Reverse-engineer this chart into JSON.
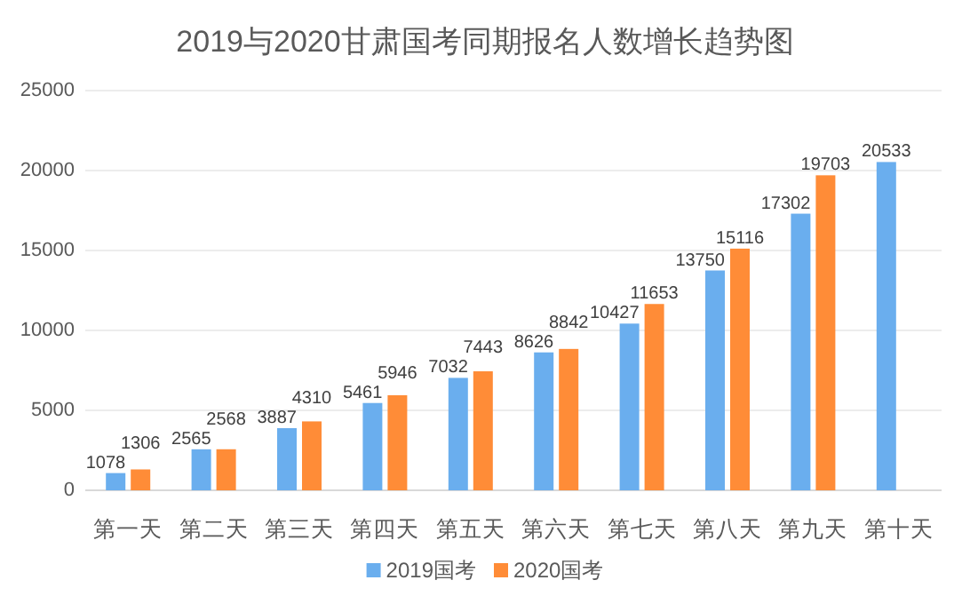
{
  "chart_data": {
    "type": "bar",
    "title": "2019与2020甘肃国考同期报名人数增长趋势图",
    "categories": [
      "第一天",
      "第二天",
      "第三天",
      "第四天",
      "第五天",
      "第六天",
      "第七天",
      "第八天",
      "第九天",
      "第十天"
    ],
    "series": [
      {
        "name": "2019国考",
        "color": "#6aaeee",
        "values": [
          1078,
          2565,
          3887,
          5461,
          7032,
          8626,
          10427,
          13750,
          17302,
          20533
        ]
      },
      {
        "name": "2020国考",
        "color": "#ff8c37",
        "values": [
          1306,
          2568,
          4310,
          5946,
          7443,
          8842,
          11653,
          15116,
          19703,
          null
        ]
      }
    ],
    "ylim": [
      0,
      25000
    ],
    "yticks": [
      0,
      5000,
      10000,
      15000,
      20000,
      25000
    ],
    "grid": "y",
    "legend": "bottom",
    "data_labels": true
  }
}
